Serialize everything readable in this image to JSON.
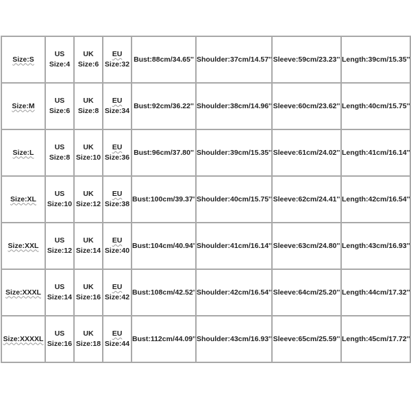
{
  "size_chart": {
    "rows": [
      {
        "size": "Size:S",
        "us": [
          "US",
          "Size:4"
        ],
        "uk": [
          "UK",
          "Size:6"
        ],
        "eu": [
          "EU",
          "Size:32"
        ],
        "bust": "Bust:88cm/34.65''",
        "shoulder": "Shoulder:37cm/14.57''",
        "sleeve": "Sleeve:59cm/23.23''",
        "length": "Length:39cm/15.35''"
      },
      {
        "size": "Size:M",
        "us": [
          "US",
          "Size:6"
        ],
        "uk": [
          "UK",
          "Size:8"
        ],
        "eu": [
          "EU",
          "Size:34"
        ],
        "bust": "Bust:92cm/36.22''",
        "shoulder": "Shoulder:38cm/14.96''",
        "sleeve": "Sleeve:60cm/23.62''",
        "length": "Length:40cm/15.75''"
      },
      {
        "size": "Size:L",
        "us": [
          "US",
          "Size:8"
        ],
        "uk": [
          "UK",
          "Size:10"
        ],
        "eu": [
          "EU",
          "Size:36"
        ],
        "bust": "Bust:96cm/37.80''",
        "shoulder": "Shoulder:39cm/15.35''",
        "sleeve": "Sleeve:61cm/24.02''",
        "length": "Length:41cm/16.14''"
      },
      {
        "size": "Size:XL",
        "us": [
          "US",
          "Size:10"
        ],
        "uk": [
          "UK",
          "Size:12"
        ],
        "eu": [
          "EU",
          "Size:38"
        ],
        "bust": "Bust:100cm/39.37''",
        "shoulder": "Shoulder:40cm/15.75''",
        "sleeve": "Sleeve:62cm/24.41''",
        "length": "Length:42cm/16.54''"
      },
      {
        "size": "Size:XXL",
        "us": [
          "US",
          "Size:12"
        ],
        "uk": [
          "UK",
          "Size:14"
        ],
        "eu": [
          "EU",
          "Size:40"
        ],
        "bust": "Bust:104cm/40.94''",
        "shoulder": "Shoulder:41cm/16.14''",
        "sleeve": "Sleeve:63cm/24.80''",
        "length": "Length:43cm/16.93''"
      },
      {
        "size": "Size:XXXL",
        "us": [
          "US",
          "Size:14"
        ],
        "uk": [
          "UK",
          "Size:16"
        ],
        "eu": [
          "EU",
          "Size:42"
        ],
        "bust": "Bust:108cm/42.52''",
        "shoulder": "Shoulder:42cm/16.54''",
        "sleeve": "Sleeve:64cm/25.20''",
        "length": "Length:44cm/17.32''"
      },
      {
        "size": "Size:XXXXL",
        "us": [
          "US",
          "Size:16"
        ],
        "uk": [
          "UK",
          "Size:18"
        ],
        "eu": [
          "EU",
          "Size:44"
        ],
        "bust": "Bust:112cm/44.09''",
        "shoulder": "Shoulder:43cm/16.93''",
        "sleeve": "Sleeve:65cm/25.59''",
        "length": "Length:45cm/17.72''"
      }
    ]
  }
}
